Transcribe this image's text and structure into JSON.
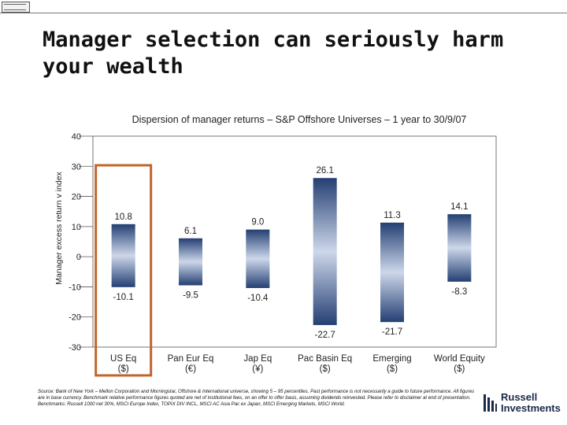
{
  "slide": {
    "title": "Manager selection can seriously harm your wealth",
    "source_note": "Source: Bank of New York – Mellon Corporation and Morningstar, Offshore & International universe, showing 5 – 95 percentiles. Past performance is not necessarily a guide to future performance. All figures are in base currency. Benchmark relative performance figures quoted are net of institutional fees, on an offer to offer basis, assuming dividends reinvested. Please refer to disclaimer at end of presentation. Benchmarks: Russell 1000 net 30%, MSCI Europe Index, TOPIX DIV INCL, MSCI AC Asia Pac ex Japan, MSCI Emerging Markets, MSCI World.",
    "brand": {
      "line1": "Russell",
      "line2": "Investments"
    }
  },
  "chart_data": {
    "type": "bar",
    "subtype": "floating-range",
    "title": "Dispersion of manager returns – S&P Offshore Universes – 1 year to 30/9/07",
    "ylabel": "Manager excess return v index",
    "xlabel": "",
    "ylim": [
      -30,
      40
    ],
    "yticks": [
      40,
      30,
      20,
      10,
      0,
      -10,
      -20,
      -30
    ],
    "grid": false,
    "legend": "none",
    "colors": {
      "bar_dark": "#243f73",
      "bar_light": "#cdd7ea",
      "highlight_box": "#c0652a"
    },
    "highlighted_category": "US Eq",
    "categories": [
      {
        "name": "US Eq",
        "currency": "($)",
        "high": 10.8,
        "low": -10.1,
        "high_label": "10.8",
        "low_label": "-10.1"
      },
      {
        "name": "Pan Eur Eq",
        "currency": "(€)",
        "high": 6.1,
        "low": -9.5,
        "high_label": "6.1",
        "low_label": "-9.5"
      },
      {
        "name": "Jap Eq",
        "currency": "(¥)",
        "high": 9.0,
        "low": -10.4,
        "high_label": "9.0",
        "low_label": "-10.4"
      },
      {
        "name": "Pac Basin Eq",
        "currency": "($)",
        "high": 26.1,
        "low": -22.7,
        "high_label": "26.1",
        "low_label": "-22.7"
      },
      {
        "name": "Emerging",
        "currency": "($)",
        "high": 11.3,
        "low": -21.7,
        "high_label": "11.3",
        "low_label": "-21.7"
      },
      {
        "name": "World Equity",
        "currency": "($)",
        "high": 14.1,
        "low": -8.3,
        "high_label": "14.1",
        "low_label": "-8.3"
      }
    ]
  }
}
